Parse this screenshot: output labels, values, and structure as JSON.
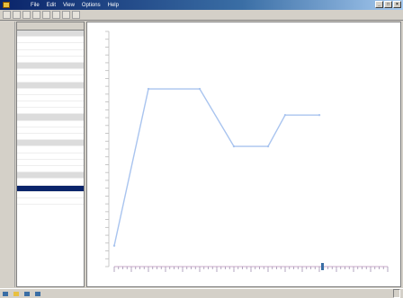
{
  "window": {
    "title": "",
    "menu": [
      "File",
      "Edit",
      "View",
      "Options",
      "Help"
    ],
    "controls": [
      "_",
      "□",
      "×"
    ]
  },
  "toolbar": {
    "buttons": [
      "",
      "",
      "",
      "",
      "",
      "",
      "",
      ""
    ]
  },
  "sidebar": {
    "header": {
      "left": "",
      "right": ""
    },
    "rows": [
      {
        "label": "",
        "value": "",
        "group": true
      },
      {
        "label": "",
        "value": ""
      },
      {
        "label": "",
        "value": ""
      },
      {
        "label": "",
        "value": ""
      },
      {
        "label": "",
        "value": ""
      },
      {
        "label": "",
        "value": "",
        "group": true
      },
      {
        "label": "",
        "value": ""
      },
      {
        "label": "",
        "value": ""
      },
      {
        "label": "",
        "value": "",
        "group": true
      },
      {
        "label": "",
        "value": ""
      },
      {
        "label": "",
        "value": ""
      },
      {
        "label": "",
        "value": ""
      },
      {
        "label": "",
        "value": ""
      },
      {
        "label": "",
        "value": "",
        "group": true
      },
      {
        "label": "",
        "value": ""
      },
      {
        "label": "",
        "value": ""
      },
      {
        "label": "",
        "value": ""
      },
      {
        "label": "",
        "value": "",
        "group": true
      },
      {
        "label": "",
        "value": ""
      },
      {
        "label": "",
        "value": ""
      },
      {
        "label": "",
        "value": ""
      },
      {
        "label": "",
        "value": ""
      },
      {
        "label": "",
        "value": "",
        "group": true
      },
      {
        "label": "",
        "value": ""
      },
      {
        "label": "",
        "value": "",
        "selected": true
      },
      {
        "label": "",
        "value": ""
      },
      {
        "label": "",
        "value": ""
      }
    ]
  },
  "chart_data": {
    "type": "line",
    "title": "",
    "xlabel": "",
    "ylabel": "",
    "x": [
      0,
      2,
      5,
      7,
      9,
      10,
      12
    ],
    "values": [
      8,
      68,
      68,
      46,
      46,
      58,
      58
    ],
    "xlim": [
      0,
      16
    ],
    "ylim": [
      0,
      90
    ],
    "grid": false,
    "color": "#a9c4ef"
  },
  "status": {
    "items": [
      "",
      "",
      "",
      ""
    ],
    "right": ""
  }
}
